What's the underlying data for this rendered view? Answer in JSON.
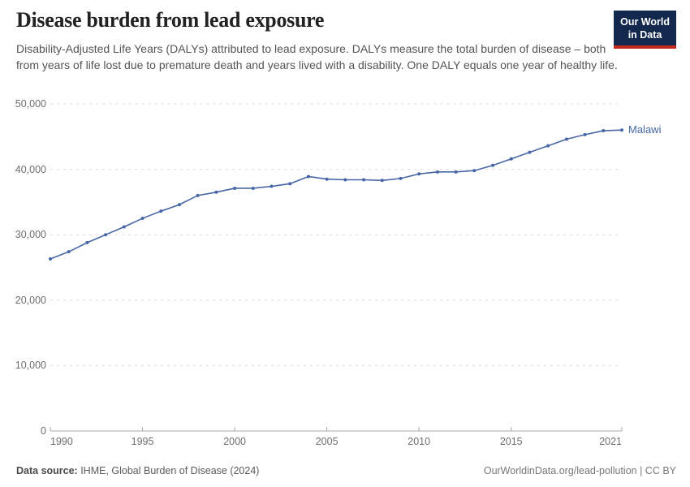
{
  "header": {
    "title": "Disease burden from lead exposure",
    "subtitle": "Disability-Adjusted Life Years (DALYs) attributed to lead exposure. DALYs measure the total burden of disease – both from years of life lost due to premature death and years lived with a disability. One DALY equals one year of healthy life."
  },
  "logo": {
    "line1": "Our World",
    "line2": "in Data",
    "bg_color": "#12294d",
    "accent_color": "#c52b1d"
  },
  "chart_data": {
    "type": "line",
    "title": "Disease burden from lead exposure",
    "xlabel": "",
    "ylabel": "DALYs attributed to lead exposure",
    "x": [
      1990,
      1991,
      1992,
      1993,
      1994,
      1995,
      1996,
      1997,
      1998,
      1999,
      2000,
      2001,
      2002,
      2003,
      2004,
      2005,
      2006,
      2007,
      2008,
      2009,
      2010,
      2011,
      2012,
      2013,
      2014,
      2015,
      2016,
      2017,
      2018,
      2019,
      2020,
      2021
    ],
    "series": [
      {
        "name": "Malawi",
        "color": "#4666a5",
        "values": [
          26300,
          27400,
          28800,
          30000,
          31200,
          32500,
          33600,
          34600,
          36000,
          36500,
          37100,
          37100,
          37400,
          37800,
          38900,
          38500,
          38400,
          38400,
          38300,
          38600,
          39300,
          39600,
          39600,
          39800,
          40600,
          41600,
          42600,
          43600,
          44600,
          45300,
          45900,
          46000
        ]
      }
    ],
    "xticks": [
      1990,
      1995,
      2000,
      2005,
      2010,
      2015,
      2021
    ],
    "yticks": [
      0,
      10000,
      20000,
      30000,
      40000,
      50000
    ],
    "xlim": [
      1990,
      2021
    ],
    "ylim": [
      0,
      50000
    ],
    "grid": "dashed-horizontal",
    "legend": "end-of-line-label"
  },
  "colors": {
    "grid": "#dcdcdc",
    "axis": "#a8a8a8",
    "tick_text": "#6e6e6e"
  },
  "footer": {
    "source_label": "Data source:",
    "source_text": " IHME, Global Burden of Disease (2024)",
    "credit": "OurWorldinData.org/lead-pollution | CC BY"
  }
}
